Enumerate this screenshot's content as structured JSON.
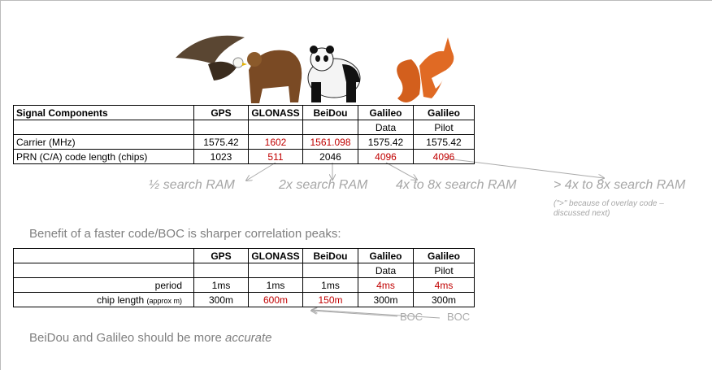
{
  "table1": {
    "columns": [
      {
        "name": "Signal Components"
      },
      {
        "name": "GPS"
      },
      {
        "name": "GLONASS"
      },
      {
        "name": "BeiDou"
      },
      {
        "name": "Galileo",
        "sub": "Data"
      },
      {
        "name": "Galileo",
        "sub": "Pilot"
      }
    ],
    "rows": [
      {
        "label": "Carrier (MHz)",
        "values": [
          "1575.42",
          "1602",
          "1561.098",
          "1575.42",
          "1575.42"
        ],
        "red": [
          1,
          2
        ]
      },
      {
        "label": "PRN (C/A) code length (chips)",
        "values": [
          "1023",
          "511",
          "2046",
          "4096",
          "4096"
        ],
        "red": [
          1,
          3,
          4
        ]
      }
    ]
  },
  "annotations": [
    "½ search RAM",
    "2x search RAM",
    "4x to 8x search RAM",
    "> 4x to 8x search RAM"
  ],
  "note": "(\">\" because of overlay code – discussed next)",
  "benefit": "Benefit of a faster code/BOC is sharper correlation peaks:",
  "table2": {
    "columns": [
      {},
      {
        "name": "GPS"
      },
      {
        "name": "GLONASS"
      },
      {
        "name": "BeiDou"
      },
      {
        "name": "Galileo",
        "sub": "Data"
      },
      {
        "name": "Galileo",
        "sub": "Pilot"
      }
    ],
    "rows": [
      {
        "label": "period",
        "values": [
          "1ms",
          "1ms",
          "1ms",
          "4ms",
          "4ms"
        ],
        "red": [
          3,
          4
        ]
      },
      {
        "label": "chip length",
        "label_note": "(approx m)",
        "values": [
          "300m",
          "600m",
          "150m",
          "300m",
          "300m"
        ],
        "red": [
          1,
          2
        ]
      }
    ]
  },
  "boc": [
    "BOC",
    "BOC"
  ],
  "conclusion": {
    "text": "BeiDou and Galileo should be more ",
    "emphasis": "accurate"
  }
}
